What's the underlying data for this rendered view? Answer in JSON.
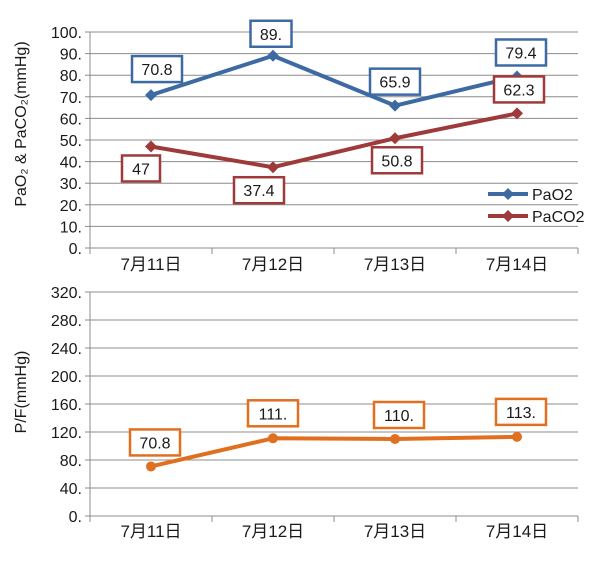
{
  "chart_data": [
    {
      "type": "line",
      "ylabel": "PaO₂ & PaCO₂(mmHg)",
      "categories": [
        "7月11日",
        "7月12日",
        "7月13日",
        "7月14日"
      ],
      "yticks": [
        "0.",
        "10.",
        "20.",
        "30.",
        "40.",
        "50.",
        "60.",
        "70.",
        "80.",
        "90.",
        "100."
      ],
      "ylim": [
        0,
        100
      ],
      "grid": true,
      "legend_position": "bottom-right",
      "series": [
        {
          "name": "PaO2",
          "color": "#3d6aa3",
          "marker": "diamond",
          "values": [
            70.8,
            89,
            65.9,
            79.4
          ],
          "labels": [
            "70.8",
            "89.",
            "65.9",
            "79.4"
          ]
        },
        {
          "name": "PaCO2",
          "color": "#9e3a3a",
          "marker": "diamond",
          "values": [
            47,
            37.4,
            50.8,
            62.3
          ],
          "labels": [
            "47",
            "37.4",
            "50.8",
            "62.3"
          ]
        }
      ]
    },
    {
      "type": "line",
      "ylabel": "P/F(mmHg)",
      "categories": [
        "7月11日",
        "7月12日",
        "7月13日",
        "7月14日"
      ],
      "yticks": [
        "0.",
        "40.",
        "80.",
        "120.",
        "160.",
        "200.",
        "240.",
        "280.",
        "320."
      ],
      "ylim": [
        0,
        320
      ],
      "grid": true,
      "series": [
        {
          "color": "#e07020",
          "marker": "circle",
          "values": [
            70.8,
            111,
            110,
            113
          ],
          "labels": [
            "70.8",
            "111.",
            "110.",
            "113."
          ]
        }
      ]
    }
  ]
}
